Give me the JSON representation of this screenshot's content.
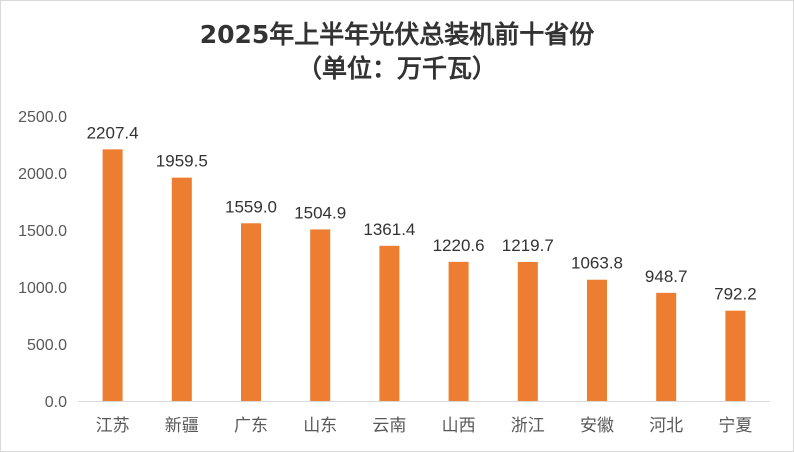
{
  "chart_data": {
    "type": "bar",
    "title": "2025年上半年光伏总装机前十省份",
    "subtitle": "（单位：万千瓦）",
    "categories": [
      "江苏",
      "新疆",
      "广东",
      "山东",
      "云南",
      "山西",
      "浙江",
      "安徽",
      "河北",
      "宁夏"
    ],
    "values": [
      2207.4,
      1959.5,
      1559.0,
      1504.9,
      1361.4,
      1220.6,
      1219.7,
      1063.8,
      948.7,
      792.2
    ],
    "value_labels": [
      "2207.4",
      "1959.5",
      "1559.0",
      "1504.9",
      "1361.4",
      "1220.6",
      "1219.7",
      "1063.8",
      "948.7",
      "792.2"
    ],
    "yticks": [
      "0.0",
      "500.0",
      "1000.0",
      "1500.0",
      "2000.0",
      "2500.0"
    ],
    "ytick_values": [
      0,
      500,
      1000,
      1500,
      2000,
      2500
    ],
    "ylim": [
      0,
      2500
    ],
    "xlabel": "",
    "ylabel": "",
    "grid": false,
    "legend": "none",
    "bar_color": "#ed7d31"
  }
}
